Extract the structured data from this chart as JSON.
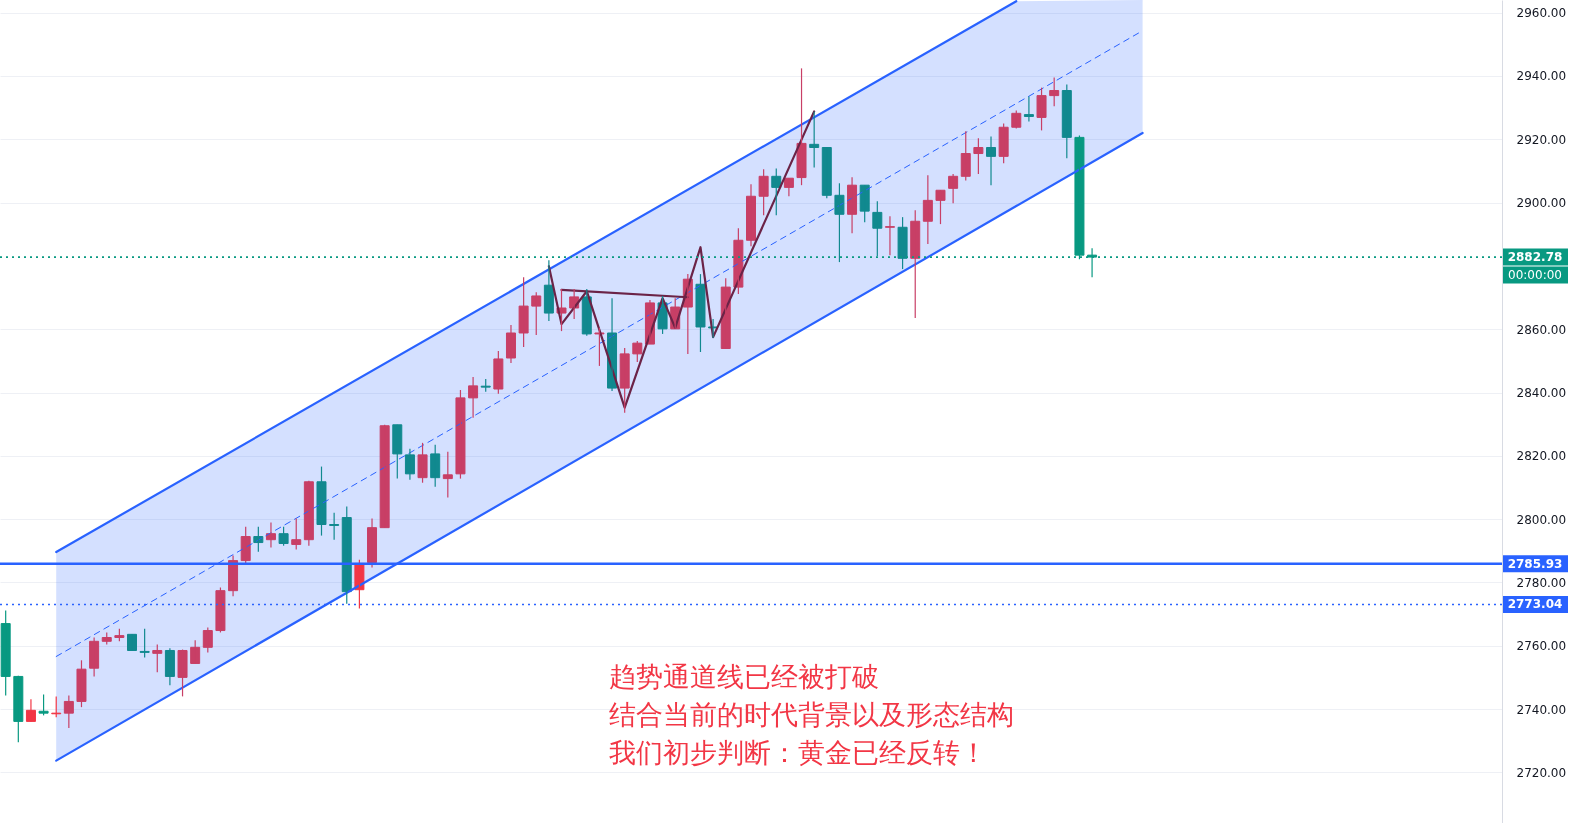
{
  "chart_data": {
    "type": "candlestick",
    "ylim": [
      2704,
      2964
    ],
    "yticks": [
      {
        "value": 2720,
        "label": "2720.00"
      },
      {
        "value": 2740,
        "label": "2740.00"
      },
      {
        "value": 2760,
        "label": "2760.00"
      },
      {
        "value": 2780,
        "label": "2780.00"
      },
      {
        "value": 2800,
        "label": "2800.00"
      },
      {
        "value": 2820,
        "label": "2820.00"
      },
      {
        "value": 2840,
        "label": "2840.00"
      },
      {
        "value": 2860,
        "label": "2860.00"
      },
      {
        "value": 2900,
        "label": "2900.00"
      },
      {
        "value": 2920,
        "label": "2920.00"
      },
      {
        "value": 2940,
        "label": "2940.00"
      },
      {
        "value": 2960,
        "label": "2960.00"
      }
    ],
    "grid": "y",
    "tick_labels": "y",
    "colors": [
      "#089981",
      "#089981",
      "#f23645",
      "#089981",
      "#f23645",
      "#c83f66",
      "#c83f66",
      "#c83f66",
      "#c83f66",
      "#c83f66",
      "#11898f",
      "#11898f",
      "#c83f66",
      "#11898f",
      "#c83f66",
      "#c83f66",
      "#c83f66",
      "#c83f66",
      "#c83f66",
      "#c83f66",
      "#11898f",
      "#c83f66",
      "#11898f",
      "#c83f66",
      "#c83f66",
      "#11898f",
      "#11898f",
      "#11898f",
      "#f23645",
      "#c83f66",
      "#c83f66",
      "#11898f",
      "#11898f",
      "#c83f66",
      "#11898f",
      "#c83f66",
      "#c83f66",
      "#c83f66",
      "#11898f",
      "#c83f66",
      "#c83f66",
      "#c83f66",
      "#c83f66",
      "#11898f",
      "#c83f66",
      "#c83f66",
      "#11898f",
      "#c83f66",
      "#11898f",
      "#c83f66",
      "#c83f66",
      "#c83f66",
      "#11898f",
      "#c83f66",
      "#c83f66",
      "#11898f",
      "#11898f",
      "#c83f66",
      "#c83f66",
      "#c83f66",
      "#c83f66",
      "#11898f",
      "#c83f66",
      "#c83f66",
      "#11898f",
      "#11898f",
      "#11898f",
      "#c83f66",
      "#11898f",
      "#11898f",
      "#c83f66",
      "#11898f",
      "#c83f66",
      "#c83f66",
      "#c83f66",
      "#c83f66",
      "#c83f66",
      "#c83f66",
      "#11898f",
      "#c83f66",
      "#c83f66",
      "#11898f",
      "#c83f66",
      "#c83f66",
      "#11898f",
      "#089981",
      "#089981",
      null,
      null,
      null,
      null,
      null,
      null,
      null,
      null,
      null,
      null,
      null,
      null,
      null,
      null,
      null,
      null,
      null,
      null,
      null,
      null,
      null,
      null,
      null,
      null,
      null,
      null,
      null,
      null,
      null,
      null,
      null,
      null
    ],
    "categories": [
      null,
      null,
      null,
      null,
      null,
      null,
      null,
      null,
      null,
      null,
      null,
      null,
      null,
      null,
      null,
      null,
      null,
      null,
      null,
      null,
      null,
      null,
      null,
      null,
      null,
      null,
      null,
      null,
      null,
      null,
      null,
      null,
      null,
      null,
      null,
      null,
      null,
      null,
      null,
      null,
      null,
      null,
      null,
      null,
      null,
      null,
      null,
      null,
      null,
      null,
      null,
      null,
      null,
      null,
      null,
      null,
      null,
      null,
      null,
      null,
      null,
      null,
      null,
      null,
      null,
      null,
      null,
      null,
      null,
      null,
      null,
      null,
      null,
      null,
      null,
      null,
      null,
      null,
      null,
      null,
      null,
      null,
      null,
      null,
      null,
      null,
      null,
      null,
      null,
      null,
      null,
      null,
      null,
      null,
      null,
      null,
      null,
      null,
      null,
      null,
      null,
      null,
      null,
      null,
      null,
      null,
      null,
      null,
      null,
      null,
      null,
      null,
      null,
      null,
      null,
      null,
      null,
      null,
      null
    ],
    "ohlc": [
      [
        2767.0,
        2771.1,
        2744.3,
        2750.3
      ],
      [
        2750.3,
        2750.5,
        2729.5,
        2736.1
      ],
      [
        2736.1,
        2743.1,
        2736.1,
        2739.6
      ],
      [
        2739.3,
        2744.6,
        2738.0,
        2738.7
      ],
      [
        2738.5,
        2744.0,
        2737.4,
        2738.7
      ],
      [
        2738.7,
        2744.3,
        2734.0,
        2742.4
      ],
      [
        2742.4,
        2755.4,
        2740.6,
        2752.6
      ],
      [
        2752.9,
        2762.6,
        2750.3,
        2761.4
      ],
      [
        2761.4,
        2764.2,
        2760.4,
        2762.6
      ],
      [
        2762.6,
        2765.4,
        2761.4,
        2763.2
      ],
      [
        2763.6,
        2763.6,
        2758.5,
        2758.5
      ],
      [
        2758.2,
        2765.4,
        2756.3,
        2757.9
      ],
      [
        2757.6,
        2760.4,
        2751.6,
        2758.5
      ],
      [
        2758.5,
        2759.2,
        2747.5,
        2750.3
      ],
      [
        2750.0,
        2758.8,
        2744.0,
        2758.5
      ],
      [
        2754.4,
        2761.7,
        2754.4,
        2759.5
      ],
      [
        2759.5,
        2765.8,
        2757.9,
        2764.8
      ],
      [
        2764.8,
        2778.4,
        2764.2,
        2777.4
      ],
      [
        2777.4,
        2788.5,
        2775.6,
        2786.9
      ],
      [
        2786.9,
        2797.6,
        2785.9,
        2794.5
      ],
      [
        2794.5,
        2797.6,
        2789.7,
        2792.6
      ],
      [
        2793.5,
        2798.9,
        2791.0,
        2795.4
      ],
      [
        2795.4,
        2797.6,
        2791.6,
        2792.3
      ],
      [
        2792.0,
        2800.2,
        2790.4,
        2793.5
      ],
      [
        2793.5,
        2812.1,
        2791.6,
        2811.8
      ],
      [
        2811.8,
        2816.6,
        2794.8,
        2798.3
      ],
      [
        2798.3,
        2802.0,
        2793.5,
        2798.0
      ],
      [
        2800.5,
        2804.0,
        2773.3,
        2777.1
      ],
      [
        2777.7,
        2787.2,
        2771.8,
        2786.0
      ],
      [
        2786.3,
        2800.2,
        2784.7,
        2797.3
      ],
      [
        2797.3,
        2829.8,
        2797.3,
        2829.5
      ],
      [
        2829.8,
        2829.8,
        2812.8,
        2820.6
      ],
      [
        2820.3,
        2822.2,
        2812.4,
        2814.3
      ],
      [
        2813.1,
        2824.1,
        2811.5,
        2820.3
      ],
      [
        2820.6,
        2823.5,
        2810.2,
        2813.1
      ],
      [
        2812.8,
        2821.3,
        2806.8,
        2814.0
      ],
      [
        2814.3,
        2840.8,
        2812.8,
        2838.3
      ],
      [
        2838.3,
        2844.9,
        2832.0,
        2842.1
      ],
      [
        2842.0,
        2844.3,
        2840.2,
        2841.7
      ],
      [
        2841.1,
        2853.1,
        2839.6,
        2850.6
      ],
      [
        2850.9,
        2861.3,
        2849.3,
        2858.8
      ],
      [
        2858.8,
        2876.4,
        2854.4,
        2867.3
      ],
      [
        2867.3,
        2871.7,
        2858.2,
        2870.5
      ],
      [
        2873.9,
        2881.8,
        2862.6,
        2865.1
      ],
      [
        2865.1,
        2872.7,
        2859.4,
        2866.7
      ],
      [
        2866.7,
        2872.7,
        2863.2,
        2870.2
      ],
      [
        2870.2,
        2872.7,
        2857.9,
        2858.5
      ],
      [
        2858.5,
        2860.4,
        2848.4,
        2858.8
      ],
      [
        2858.8,
        2869.8,
        2840.5,
        2841.4
      ],
      [
        2841.4,
        2854.1,
        2833.6,
        2852.2
      ],
      [
        2852.2,
        2856.3,
        2849.6,
        2855.6
      ],
      [
        2855.3,
        2869.2,
        2855.3,
        2868.3
      ],
      [
        2868.3,
        2870.5,
        2858.5,
        2860.1
      ],
      [
        2860.1,
        2869.8,
        2860.1,
        2867.0
      ],
      [
        2867.0,
        2877.4,
        2852.2,
        2875.8
      ],
      [
        2874.2,
        2877.4,
        2852.8,
        2860.7
      ],
      [
        2860.7,
        2863.2,
        2857.2,
        2860.4
      ],
      [
        2853.9,
        2876.1,
        2853.9,
        2873.3
      ],
      [
        2873.3,
        2891.9,
        2871.1,
        2888.1
      ],
      [
        2888.1,
        2905.8,
        2886.2,
        2902.0
      ],
      [
        2902.0,
        2910.5,
        2896.0,
        2908.3
      ],
      [
        2908.3,
        2910.8,
        2896.0,
        2904.8
      ],
      [
        2904.8,
        2907.7,
        2902.0,
        2907.7
      ],
      [
        2907.9,
        2942.4,
        2905.5,
        2918.7
      ],
      [
        2918.4,
        2928.8,
        2911.1,
        2917.4
      ],
      [
        2917.4,
        2917.4,
        2901.4,
        2902.3
      ],
      [
        2902.3,
        2906.1,
        2881.2,
        2896.3
      ],
      [
        2896.3,
        2908.0,
        2890.3,
        2905.5
      ],
      [
        2905.5,
        2905.5,
        2893.8,
        2897.3
      ],
      [
        2896.9,
        2900.4,
        2883.1,
        2891.9
      ],
      [
        2892.2,
        2895.7,
        2883.4,
        2892.4
      ],
      [
        2892.2,
        2895.4,
        2879.0,
        2882.4
      ],
      [
        2882.4,
        2897.6,
        2863.5,
        2894.1
      ],
      [
        2894.1,
        2908.6,
        2886.9,
        2900.7
      ],
      [
        2900.7,
        2903.9,
        2893.2,
        2903.9
      ],
      [
        2904.5,
        2909.0,
        2899.8,
        2908.3
      ],
      [
        2908.3,
        2922.5,
        2907.0,
        2915.5
      ],
      [
        2915.5,
        2920.3,
        2909.0,
        2917.4
      ],
      [
        2917.4,
        2920.9,
        2905.5,
        2914.6
      ],
      [
        2914.6,
        2925.0,
        2912.4,
        2923.8
      ],
      [
        2923.8,
        2929.1,
        2923.4,
        2928.2
      ],
      [
        2927.8,
        2933.5,
        2925.6,
        2927.2
      ],
      [
        2926.9,
        2936.3,
        2922.8,
        2933.8
      ],
      [
        2933.8,
        2939.5,
        2930.4,
        2935.4
      ],
      [
        2935.4,
        2937.3,
        2914.0,
        2920.6
      ],
      [
        2920.6,
        2921.2,
        2882.1,
        2883.4
      ],
      [
        2883.4,
        2885.6,
        2876.4,
        2882.78
      ],
      null,
      null,
      null,
      null,
      null,
      null,
      null,
      null,
      null,
      null,
      null,
      null,
      null,
      null,
      null,
      null,
      null,
      null,
      null,
      null,
      null,
      null,
      null,
      null,
      null,
      null,
      null,
      null,
      null,
      null,
      null,
      null
    ],
    "series": [
      {
        "type": "line",
        "color": "#2962ff",
        "line_style": "solid",
        "values": [
          null,
          null,
          null,
          null,
          2789.6,
          null,
          null,
          null,
          null,
          null,
          null,
          null,
          null,
          null,
          null,
          null,
          null,
          null,
          null,
          null,
          null,
          null,
          null,
          null,
          null,
          null,
          null,
          null,
          null,
          null,
          null,
          null,
          null,
          null,
          null,
          null,
          null,
          null,
          null,
          null,
          null,
          null,
          null,
          null,
          null,
          null,
          null,
          null,
          null,
          null,
          null,
          null,
          null,
          null,
          null,
          null,
          null,
          null,
          null,
          null,
          null,
          null,
          null,
          null,
          null,
          null,
          null,
          null,
          null,
          null,
          null,
          null,
          null,
          null,
          null,
          null,
          null,
          null,
          null,
          null,
          2963.6,
          null,
          null,
          null,
          null,
          null,
          null,
          null,
          null,
          null,
          null,
          null,
          null,
          null,
          null,
          null,
          null,
          null,
          null,
          null,
          null,
          null,
          null,
          null,
          null,
          null,
          null,
          null,
          null,
          null,
          null,
          null,
          null,
          null,
          null,
          null,
          null,
          null,
          null
        ]
      },
      {
        "type": "line",
        "color": "#2962ff",
        "line_style": "solid",
        "values": [
          null,
          null,
          null,
          null,
          2723.7,
          null,
          null,
          null,
          null,
          null,
          null,
          null,
          null,
          null,
          null,
          null,
          null,
          null,
          null,
          null,
          null,
          null,
          null,
          null,
          null,
          null,
          null,
          null,
          null,
          null,
          null,
          null,
          null,
          null,
          null,
          null,
          null,
          null,
          null,
          null,
          null,
          null,
          null,
          null,
          null,
          null,
          null,
          null,
          null,
          null,
          null,
          null,
          null,
          null,
          null,
          null,
          null,
          null,
          null,
          null,
          null,
          null,
          null,
          null,
          null,
          null,
          null,
          null,
          null,
          null,
          null,
          null,
          null,
          null,
          null,
          null,
          null,
          null,
          null,
          null,
          2898.9,
          null,
          null,
          null,
          null,
          null,
          null,
          null,
          null,
          null,
          2922.0,
          null,
          null,
          null,
          null,
          null,
          null,
          null,
          null,
          null,
          null,
          null,
          null,
          null,
          null,
          null,
          null,
          null,
          null,
          null,
          null,
          null,
          null,
          null,
          null,
          null,
          null,
          null,
          null
        ]
      },
      {
        "type": "line",
        "color": "#2962ff",
        "line_style": "dashed",
        "values": [
          null,
          null,
          null,
          null,
          2756.6,
          null,
          null,
          null,
          null,
          null,
          null,
          null,
          null,
          null,
          null,
          null,
          null,
          null,
          null,
          null,
          null,
          null,
          null,
          null,
          null,
          null,
          null,
          null,
          null,
          null,
          null,
          null,
          null,
          null,
          null,
          null,
          null,
          null,
          null,
          null,
          null,
          null,
          null,
          null,
          null,
          null,
          null,
          null,
          null,
          null,
          null,
          null,
          null,
          null,
          null,
          null,
          null,
          null,
          null,
          null,
          null,
          null,
          null,
          null,
          null,
          null,
          null,
          null,
          null,
          null,
          null,
          null,
          null,
          null,
          null,
          null,
          null,
          null,
          null,
          null,
          2931.3,
          null,
          null,
          null,
          null,
          null,
          null,
          null,
          null,
          null,
          2954.3,
          null,
          null,
          null,
          null,
          null,
          null,
          null,
          null,
          null,
          null,
          null,
          null,
          null,
          null,
          null,
          null,
          null,
          null,
          null,
          null,
          null,
          null,
          null,
          null,
          null,
          null,
          null,
          null
        ],
        "lower": [
          null,
          null,
          null,
          null,
          2723.7,
          null,
          null,
          null,
          null,
          null,
          null,
          null,
          null,
          null,
          null,
          null,
          null,
          null,
          null,
          null,
          null,
          null,
          null,
          null,
          null,
          null,
          null,
          null,
          null,
          null,
          null,
          null,
          null,
          null,
          null,
          null,
          null,
          null,
          null,
          null,
          null,
          null,
          null,
          null,
          null,
          null,
          null,
          null,
          null,
          null,
          null,
          null,
          null,
          null,
          null,
          null,
          null,
          null,
          null,
          null,
          null,
          null,
          null,
          null,
          null,
          null,
          null,
          null,
          null,
          null,
          null,
          null,
          null,
          null,
          null,
          null,
          null,
          null,
          null,
          null,
          2898.9,
          null,
          null,
          null,
          null,
          null,
          null,
          null,
          null,
          null,
          2922.0,
          null,
          null,
          null,
          null,
          null,
          null,
          null,
          null,
          null,
          null,
          null,
          null,
          null,
          null,
          null,
          null,
          null,
          null,
          null,
          null,
          null,
          null,
          null,
          null,
          null,
          null,
          null,
          null
        ],
        "upper": [
          null,
          null,
          null,
          null,
          2789.6,
          null,
          null,
          null,
          null,
          null,
          null,
          null,
          null,
          null,
          null,
          null,
          null,
          null,
          null,
          null,
          null,
          null,
          null,
          null,
          null,
          null,
          null,
          null,
          null,
          null,
          null,
          null,
          null,
          null,
          null,
          null,
          null,
          null,
          null,
          null,
          null,
          null,
          null,
          null,
          null,
          null,
          null,
          null,
          null,
          null,
          null,
          null,
          null,
          null,
          null,
          null,
          null,
          null,
          null,
          null,
          null,
          null,
          null,
          null,
          null,
          null,
          null,
          null,
          null,
          null,
          null,
          null,
          null,
          null,
          null,
          null,
          null,
          null,
          null,
          null,
          2963.6,
          null,
          null,
          null,
          null,
          null,
          null,
          null,
          null,
          null,
          2964,
          null,
          null,
          null,
          null,
          null,
          null,
          null,
          null,
          null,
          null,
          null,
          null,
          null,
          null,
          null,
          null,
          null,
          null,
          null,
          null,
          null,
          null,
          null,
          null,
          null,
          null,
          null,
          null
        ]
      },
      {
        "type": "line",
        "color": "#6b2347",
        "line_style": "solid",
        "values": [
          null,
          null,
          null,
          null,
          null,
          null,
          null,
          null,
          null,
          null,
          null,
          null,
          null,
          null,
          null,
          null,
          null,
          null,
          null,
          null,
          null,
          null,
          null,
          null,
          null,
          null,
          null,
          null,
          null,
          null,
          null,
          null,
          null,
          null,
          null,
          null,
          null,
          null,
          null,
          null,
          null,
          null,
          null,
          2879.9,
          2861.6,
          null,
          2872.0,
          null,
          null,
          2835.2,
          null,
          null,
          2869.8,
          2860.4,
          null,
          2885.9,
          2857.5,
          null,
          null,
          null,
          null,
          null,
          null,
          null,
          2928.8,
          null,
          null,
          null,
          null,
          null,
          null,
          null,
          null,
          null,
          null,
          null,
          null,
          null,
          null,
          null,
          null,
          null,
          null,
          null,
          null,
          null,
          null,
          null,
          null,
          null,
          null,
          null,
          null,
          null,
          null,
          null,
          null,
          null,
          null,
          null,
          null,
          null,
          null,
          null,
          null,
          null,
          null,
          null,
          null,
          null,
          null,
          null,
          null,
          null,
          null,
          null,
          null,
          null,
          null
        ]
      },
      {
        "type": "line",
        "color": "#6b2347",
        "line_style": "solid",
        "values": [
          null,
          null,
          null,
          null,
          null,
          null,
          null,
          null,
          null,
          null,
          null,
          null,
          null,
          null,
          null,
          null,
          null,
          null,
          null,
          null,
          null,
          null,
          null,
          null,
          null,
          null,
          null,
          null,
          null,
          null,
          null,
          null,
          null,
          null,
          null,
          null,
          null,
          null,
          null,
          null,
          null,
          null,
          null,
          null,
          2872.4,
          null,
          null,
          null,
          null,
          null,
          null,
          null,
          null,
          null,
          2870.1,
          null,
          null,
          null,
          null,
          null,
          null,
          null,
          null,
          null,
          null,
          null,
          null,
          null,
          null,
          null,
          null,
          null,
          null,
          null,
          null,
          null,
          null,
          null,
          null,
          null,
          null,
          null,
          null,
          null,
          null,
          null,
          null,
          null,
          null,
          null,
          null,
          null,
          null,
          null,
          null,
          null,
          null,
          null,
          null,
          null,
          null,
          null,
          null,
          null,
          null,
          null,
          null,
          null,
          null,
          null,
          null,
          null,
          null,
          null,
          null,
          null,
          null,
          null,
          null
        ]
      }
    ],
    "ref_lines": [
      {
        "axis": "y",
        "value": 2785.93,
        "label": "2785.93",
        "color": "#2962ff",
        "line_style": "solid"
      },
      {
        "axis": "y",
        "value": 2773.04,
        "label": "2773.04",
        "color": "#2962ff",
        "line_style": "dotted"
      },
      {
        "axis": "y",
        "value": 2882.78,
        "label": "2882.78",
        "color": "#089981",
        "line_style": "dotted"
      }
    ],
    "annotations": [
      "00:00:00",
      "趋势通道线已经被打破",
      "结合当前的时代背景以及形态结构",
      "我们初步判断：黄金已经反转！"
    ]
  }
}
